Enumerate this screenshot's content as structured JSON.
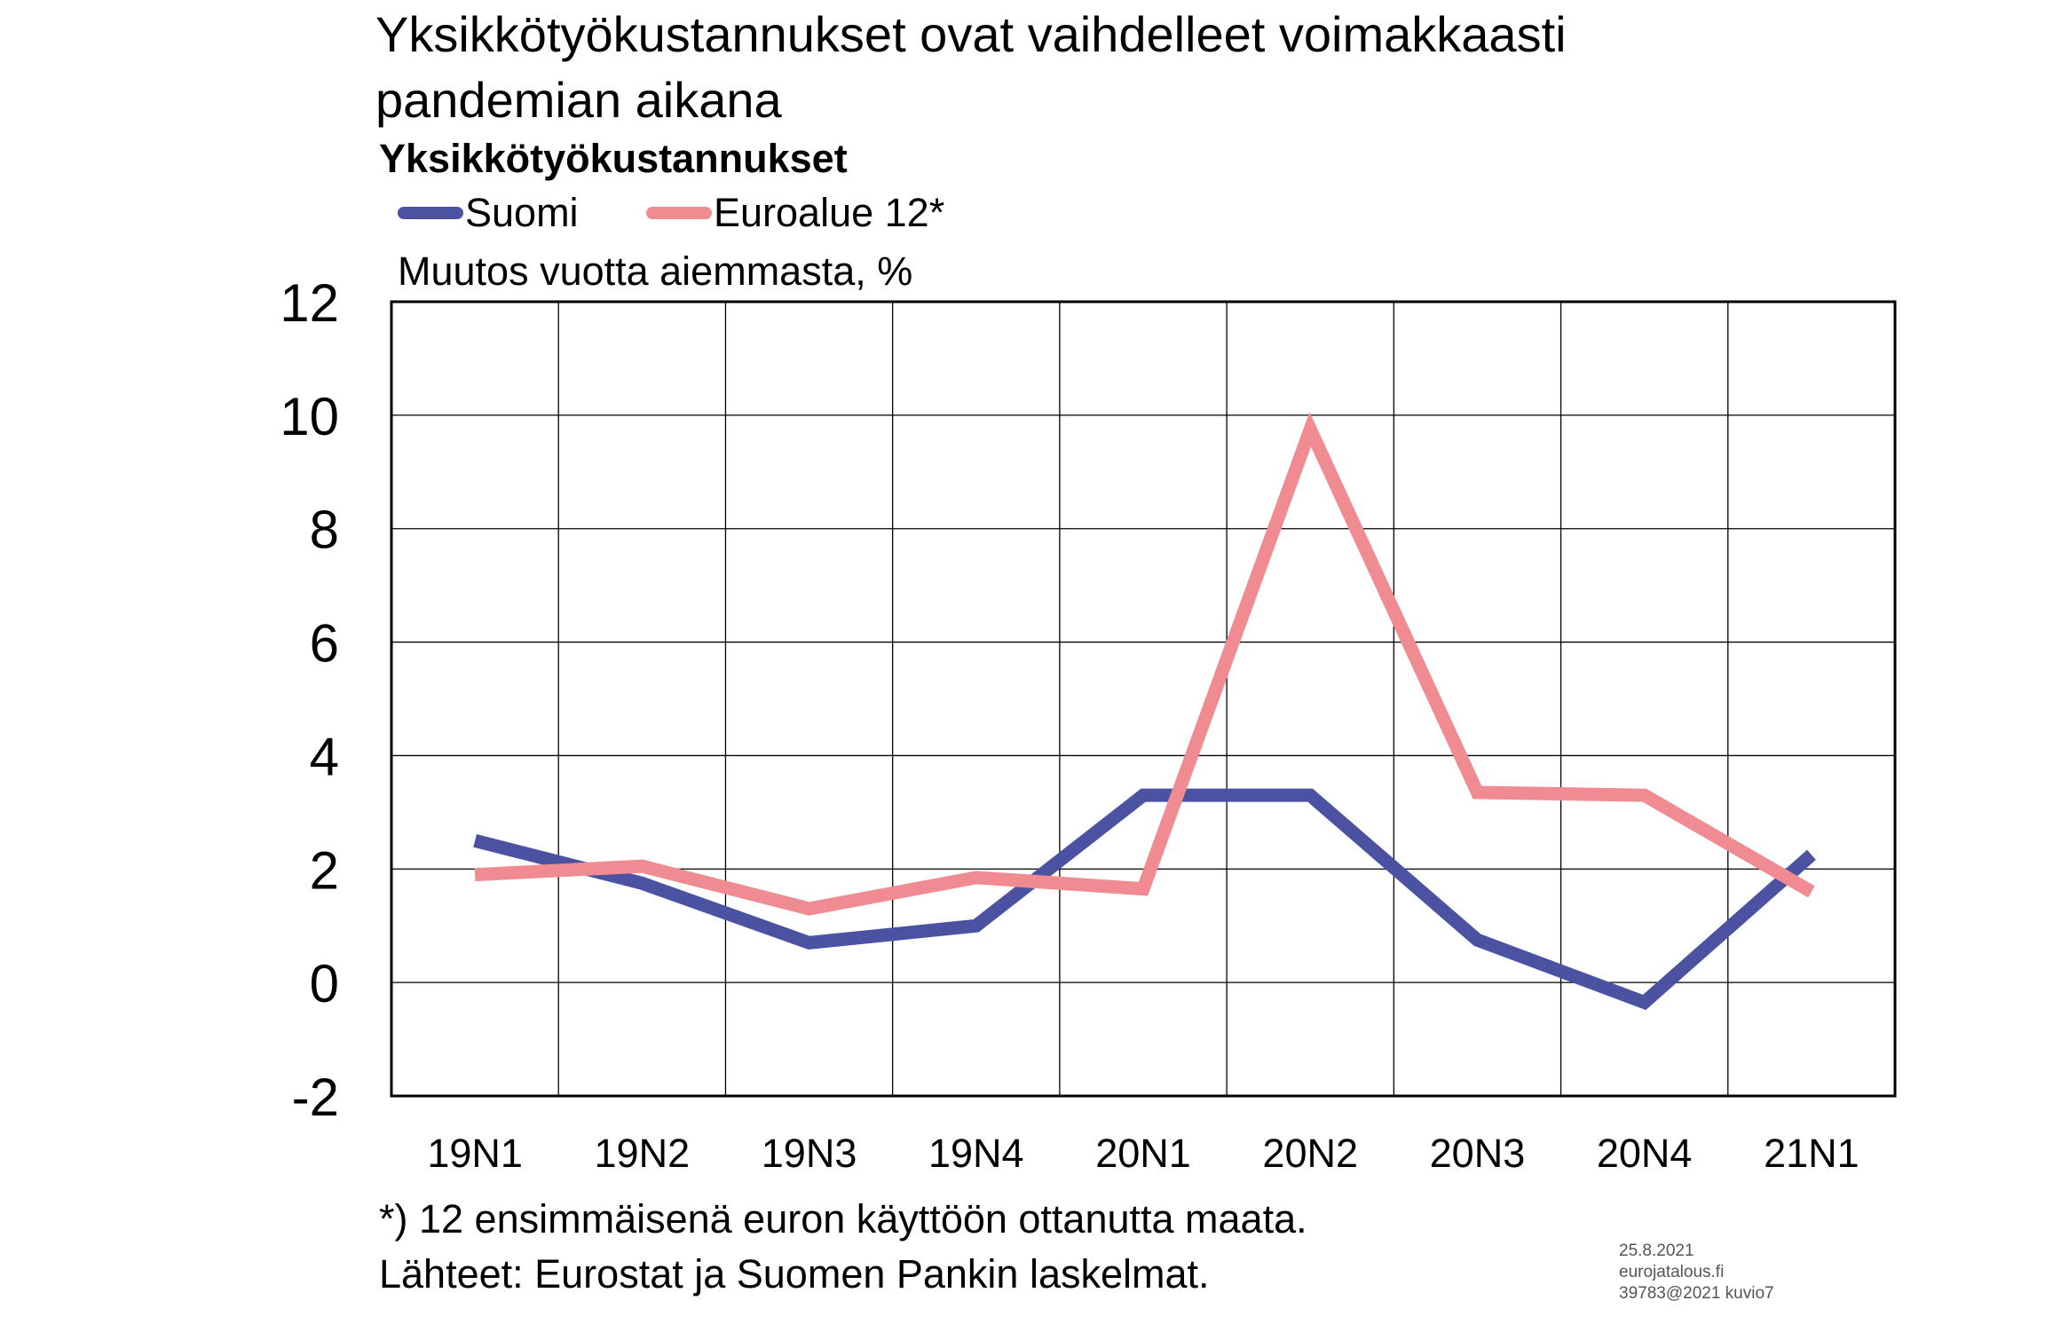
{
  "title_lines": [
    "Yksikkötyökustannukset ovat vaihdelleet voimakkaasti",
    "pandemian aikana"
  ],
  "subtitle": "Yksikkötyökustannukset",
  "unit_label": "Muutos vuotta aiemmasta, %",
  "footnotes": [
    "*) 12 ensimmäisenä euron käyttöön ottanutta maata.",
    "Lähteet: Eurostat ja Suomen Pankin laskelmat."
  ],
  "credit_lines": [
    "25.8.2021",
    "eurojatalous.fi",
    "39783@2021  kuvio7"
  ],
  "colors": {
    "suomi": "#4c52a2",
    "euroalue": "#ef8b91",
    "grid": "#000000"
  },
  "chart_data": {
    "type": "line",
    "categories": [
      "19N1",
      "19N2",
      "19N3",
      "19N4",
      "20N1",
      "20N2",
      "20N3",
      "20N4",
      "21N1"
    ],
    "series": [
      {
        "name": "Suomi",
        "values": [
          2.5,
          1.75,
          0.7,
          1.0,
          3.3,
          3.3,
          0.75,
          -0.35,
          2.25
        ]
      },
      {
        "name": "Euroalue 12*",
        "values": [
          1.9,
          2.05,
          1.3,
          1.85,
          1.65,
          9.75,
          3.35,
          3.3,
          1.6
        ]
      }
    ],
    "ylim": [
      -2,
      12
    ],
    "yticks": [
      -2,
      0,
      2,
      4,
      6,
      8,
      10,
      12
    ],
    "ytick_labels": [
      "-2",
      "0",
      "2",
      "4",
      "6",
      "8",
      "10",
      "12"
    ],
    "ylabel": "Muutos vuotta aiemmasta, %",
    "grid": true,
    "legend_position": "top-left"
  }
}
